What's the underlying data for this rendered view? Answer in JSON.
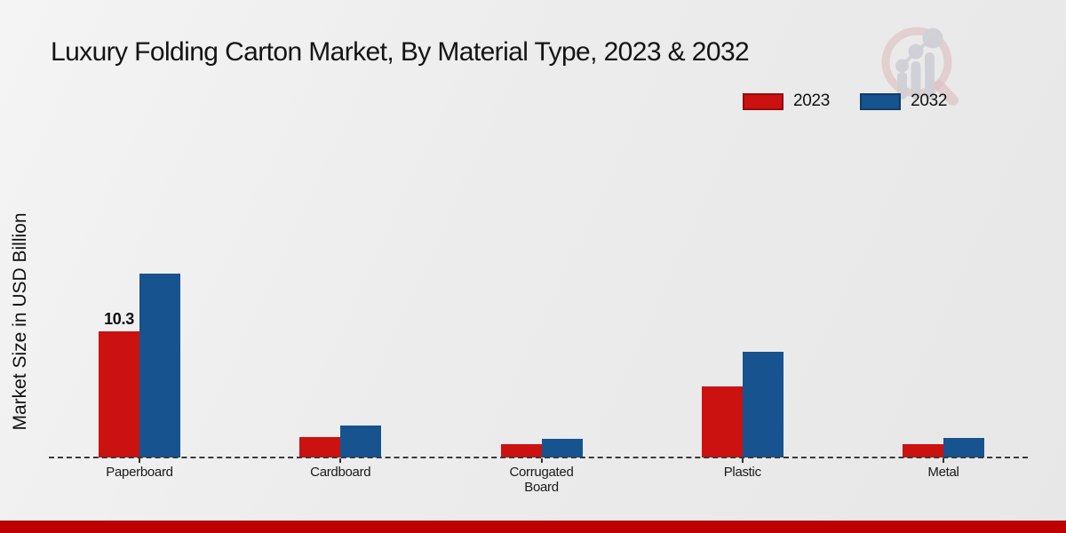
{
  "header": {
    "title": "Luxury Folding Carton Market, By Material Type, 2023 & 2032"
  },
  "branding": {
    "logo_icon": "magnifier-bar-chart-logo"
  },
  "legend": {
    "items": [
      {
        "label": "2023",
        "color": "#cc1111"
      },
      {
        "label": "2032",
        "color": "#17538f"
      }
    ]
  },
  "chart_data": {
    "type": "bar",
    "title": "Luxury Folding Carton Market, By Material Type, 2023 & 2032",
    "xlabel": "",
    "ylabel": "Market Size in USD Billion",
    "categories": [
      "Paperboard",
      "Cardboard",
      "Corrugated Board",
      "Plastic",
      "Metal"
    ],
    "series": [
      {
        "name": "2023",
        "color": "#cc1111",
        "values": [
          10.3,
          1.7,
          1.1,
          5.8,
          1.1
        ]
      },
      {
        "name": "2032",
        "color": "#17538f",
        "values": [
          15.0,
          2.6,
          1.5,
          8.6,
          1.6
        ]
      }
    ],
    "data_labels": [
      {
        "series": "2023",
        "category": "Paperboard",
        "text": "10.3"
      }
    ],
    "ylim": [
      0,
      16
    ],
    "grid": false,
    "legend_position": "top-right",
    "baseline_style": "dashed"
  },
  "footer": {
    "accent_color": "#bf0000"
  }
}
